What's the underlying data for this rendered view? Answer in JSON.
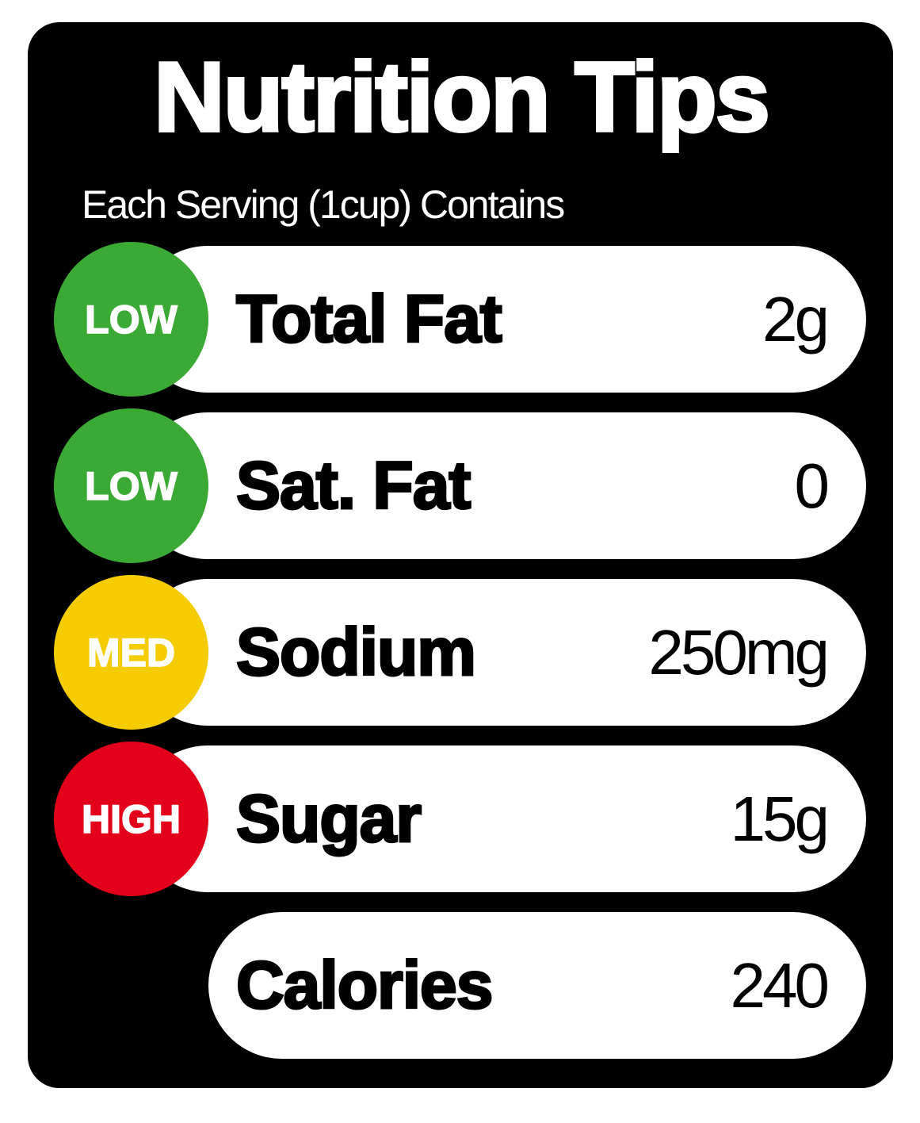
{
  "title": "Nutrition Tips",
  "subtitle": "Each Serving (1cup) Contains",
  "colors": {
    "low": "#3aaa35",
    "med": "#f5cc00",
    "high": "#e2001a",
    "background": "#000000"
  },
  "rows": [
    {
      "level": "LOW",
      "label": "Total Fat",
      "value": "2g"
    },
    {
      "level": "LOW",
      "label": "Sat. Fat",
      "value": "0"
    },
    {
      "level": "MED",
      "label": "Sodium",
      "value": "250mg"
    },
    {
      "level": "HIGH",
      "label": "Sugar",
      "value": "15g"
    }
  ],
  "calories": {
    "label": "Calories",
    "value": "240"
  }
}
